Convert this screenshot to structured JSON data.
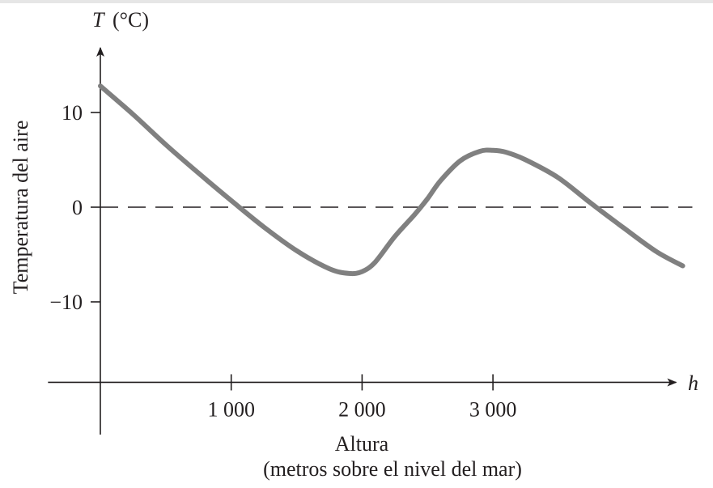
{
  "chart_data": {
    "type": "line",
    "y_axis_symbol": "T",
    "y_axis_unit": "(°C)",
    "x_axis_symbol": "h",
    "ylabel": "Temperatura del aire",
    "xlabel": "Altura",
    "xlabel_sub": "(metros sobre el nivel del mar)",
    "x_ticks": [
      1000,
      2000,
      3000
    ],
    "x_tick_labels": [
      "1 000",
      "2 000",
      "3 000"
    ],
    "y_ticks": [
      10,
      0,
      -10
    ],
    "y_tick_labels": [
      "10",
      "0",
      "−10"
    ],
    "xlim": [
      -400,
      4400
    ],
    "ylim": [
      -18.5,
      16.5
    ],
    "reference_line": {
      "y": 0,
      "style": "dashed"
    },
    "series": [
      {
        "x": [
          0,
          250,
          500,
          750,
          1000,
          1250,
          1500,
          1750,
          1900,
          2000,
          2100,
          2250,
          2400,
          2500,
          2600,
          2750,
          2900,
          3000,
          3100,
          3250,
          3500,
          3750,
          4000,
          4250,
          4450
        ],
        "y": [
          12.8,
          9.8,
          6.6,
          3.6,
          0.7,
          -2.1,
          -4.6,
          -6.5,
          -7.0,
          -6.8,
          -5.8,
          -3.1,
          -0.8,
          0.9,
          2.8,
          4.9,
          5.9,
          6.0,
          5.8,
          5.0,
          3.1,
          0.4,
          -2.2,
          -4.7,
          -6.2
        ]
      }
    ],
    "colors": {
      "curve": "#808080",
      "axis": "#231f20"
    }
  }
}
